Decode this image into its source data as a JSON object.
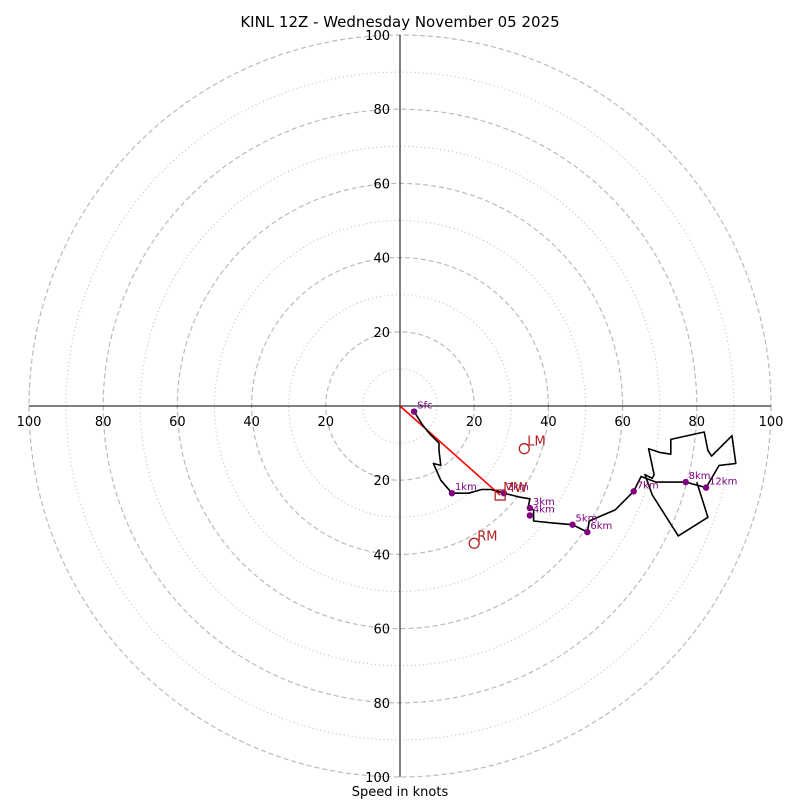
{
  "chart_data": {
    "type": "hodograph",
    "title": "KINL 12Z - Wednesday November 05 2025",
    "xlabel": "Speed in knots",
    "xlim": [
      -100,
      100
    ],
    "ylim": [
      -100,
      100
    ],
    "tick_labels": [
      "20",
      "40",
      "60",
      "80",
      "100"
    ],
    "major_rings": [
      20,
      40,
      60,
      80,
      100
    ],
    "minor_rings": [
      10,
      30,
      50,
      70,
      90
    ],
    "colors": {
      "hodograph": "#000000",
      "height_markers": "#800080",
      "storm_motion": "#b22222",
      "shear_vector": "#ff0000",
      "grid": "#bbbbbb",
      "axes": "#000000"
    },
    "hodograph": [
      [
        3.8,
        -1.5
      ],
      [
        6,
        -5
      ],
      [
        8,
        -7.5
      ],
      [
        10.5,
        -10
      ],
      [
        10.5,
        -12
      ],
      [
        11,
        -16
      ],
      [
        9,
        -15.5
      ],
      [
        11,
        -20
      ],
      [
        14,
        -23.5
      ],
      [
        18.5,
        -23.5
      ],
      [
        22,
        -22.5
      ],
      [
        24.5,
        -22.5
      ],
      [
        28,
        -23.5
      ],
      [
        32,
        -24.5
      ],
      [
        35,
        -25
      ],
      [
        34.5,
        -27.5
      ],
      [
        36,
        -28
      ],
      [
        36,
        -31
      ],
      [
        41,
        -31.5
      ],
      [
        46.5,
        -32
      ],
      [
        50.5,
        -34
      ],
      [
        51,
        -31
      ],
      [
        58,
        -28
      ],
      [
        63,
        -23
      ],
      [
        65,
        -19
      ],
      [
        69,
        -20.5
      ],
      [
        77,
        -20.5
      ],
      [
        82.5,
        -22
      ],
      [
        86,
        -16
      ],
      [
        90.5,
        -15.5
      ],
      [
        89.5,
        -8
      ],
      [
        84,
        -13.5
      ],
      [
        83,
        -12
      ],
      [
        82,
        -7
      ],
      [
        73,
        -9
      ],
      [
        73,
        -13
      ],
      [
        70,
        -12.5
      ],
      [
        67,
        -11.5
      ],
      [
        68.5,
        -18.5
      ],
      [
        68,
        -19.5
      ],
      [
        66,
        -18.5
      ],
      [
        68,
        -24
      ],
      [
        75,
        -35
      ],
      [
        83,
        -30
      ],
      [
        80,
        -20.5
      ]
    ],
    "height_markers": [
      {
        "label": "Sfc",
        "u": 3.8,
        "v": -1.5
      },
      {
        "label": "1km",
        "u": 14,
        "v": -23.5
      },
      {
        "label": "2km",
        "u": 28,
        "v": -23.5
      },
      {
        "label": "3km",
        "u": 35,
        "v": -27.5
      },
      {
        "label": "4km",
        "u": 35,
        "v": -29.5
      },
      {
        "label": "5km",
        "u": 46.5,
        "v": -32
      },
      {
        "label": "6km",
        "u": 50.5,
        "v": -34
      },
      {
        "label": "7km",
        "u": 63,
        "v": -23
      },
      {
        "label": "8km",
        "u": 77,
        "v": -20.5
      },
      {
        "label": "12km",
        "u": 82.5,
        "v": -22
      }
    ],
    "storm_motion": [
      {
        "label": "LM",
        "marker": "circle",
        "u": 33.5,
        "v": -11.5
      },
      {
        "label": "MW",
        "marker": "square",
        "u": 27,
        "v": -24
      },
      {
        "label": "RM",
        "marker": "circle",
        "u": 20,
        "v": -37
      }
    ],
    "shear_vector": {
      "from": [
        0,
        0
      ],
      "to": [
        27,
        -24
      ]
    }
  }
}
